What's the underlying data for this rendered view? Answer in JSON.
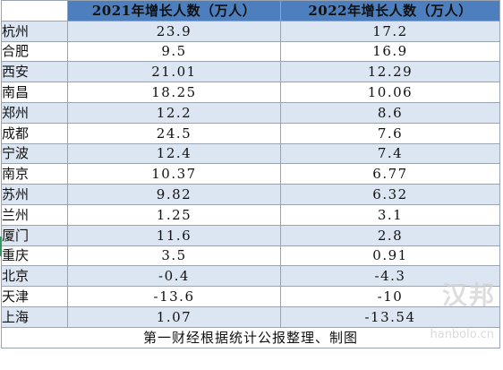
{
  "table": {
    "header": {
      "col_2021": "2021年增长人数（万人）",
      "col_2022": "2022年增长人数（万人）"
    },
    "rows": [
      {
        "city": "杭州",
        "y2021": "23.9",
        "y2022": "17.2"
      },
      {
        "city": "合肥",
        "y2021": "9.5",
        "y2022": "16.9"
      },
      {
        "city": "西安",
        "y2021": "21.01",
        "y2022": "12.29"
      },
      {
        "city": "南昌",
        "y2021": "18.25",
        "y2022": "10.06"
      },
      {
        "city": "郑州",
        "y2021": "12.2",
        "y2022": "8.6"
      },
      {
        "city": "成都",
        "y2021": "24.5",
        "y2022": "7.6"
      },
      {
        "city": "宁波",
        "y2021": "12.4",
        "y2022": "7.4"
      },
      {
        "city": "南京",
        "y2021": "10.37",
        "y2022": "6.77"
      },
      {
        "city": "苏州",
        "y2021": "9.82",
        "y2022": "6.32"
      },
      {
        "city": "兰州",
        "y2021": "1.25",
        "y2022": "3.1"
      },
      {
        "city": "厦门",
        "y2021": "11.6",
        "y2022": "2.8"
      },
      {
        "city": "重庆",
        "y2021": "3.5",
        "y2022": "0.91"
      },
      {
        "city": "北京",
        "y2021": "-0.4",
        "y2022": "-4.3"
      },
      {
        "city": "天津",
        "y2021": "-13.6",
        "y2022": "-10"
      },
      {
        "city": "上海",
        "y2021": "1.07",
        "y2022": "-13.54"
      }
    ],
    "footnote": "第一财经根据统计公报整理、制图"
  },
  "watermark": {
    "text": "汉邦",
    "sub": "hanbolo.cn"
  },
  "colors": {
    "header_bg": "#4d7fbf",
    "band_bg": "#dce6f2",
    "border": "#9aa4b0"
  }
}
